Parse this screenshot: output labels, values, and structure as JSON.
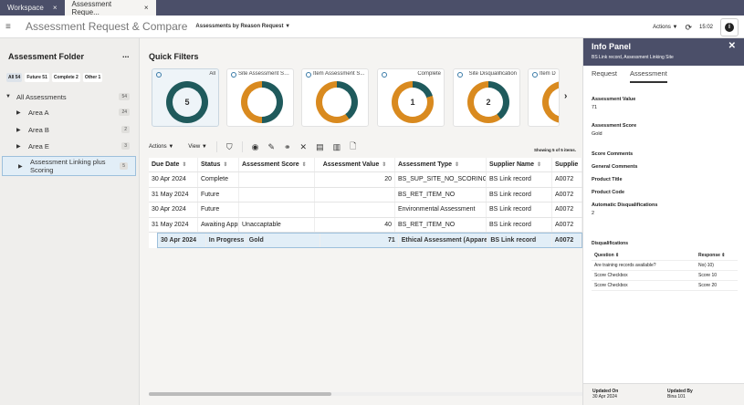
{
  "tabs": [
    {
      "label": "Workspace",
      "close": "×"
    },
    {
      "label": "Assessment Reque...",
      "close": "×"
    }
  ],
  "header": {
    "title": "Assessment Request & Compare",
    "view_select": "Assessments by Reason Request",
    "actions": "Actions",
    "time": "15:02"
  },
  "sidebar": {
    "title": "Assessment Folder",
    "more": "...",
    "chips": [
      {
        "label": "All 54"
      },
      {
        "label": "Future 51"
      },
      {
        "label": "Complete 2"
      },
      {
        "label": "Other 1"
      }
    ],
    "items": [
      {
        "label": "All Assessments",
        "count": "54"
      },
      {
        "label": "Area A",
        "count": "24"
      },
      {
        "label": "Area B",
        "count": "2"
      },
      {
        "label": "Area E",
        "count": "3"
      },
      {
        "label": "Assessment Linking plus Scoring",
        "count": "5"
      }
    ]
  },
  "quick_filters": {
    "title": "Quick Filters",
    "colors": {
      "teal": "#1f5a5c",
      "orange": "#d98a1f"
    },
    "cards": [
      {
        "label": "All",
        "value": "5",
        "teal_fraction": 1
      },
      {
        "label": "Site Assessment Sc...",
        "value": "",
        "teal_fraction": 0.5
      },
      {
        "label": "Item Assessment S...",
        "value": "",
        "teal_fraction": 0.4
      },
      {
        "label": "Complete",
        "value": "1",
        "teal_fraction": 0.2
      },
      {
        "label": "Site Disqualification",
        "value": "2",
        "teal_fraction": 0.4
      },
      {
        "label": "Item D",
        "value": "",
        "teal_fraction": 0
      }
    ]
  },
  "toolbar": {
    "actions": "Actions",
    "view": "View",
    "showing": "Showing 5 of 5 items."
  },
  "table": {
    "columns": [
      "Due Date",
      "Status",
      "Assessment Score",
      "Assessment Value",
      "Assessment Type",
      "Supplier Name",
      "Supplie"
    ],
    "rows": [
      [
        "30 Apr 2024",
        "Complete",
        "",
        "20",
        "BS_SUP_SITE_NO_SCORING",
        "BS Link record",
        "A0072"
      ],
      [
        "31 May 2024",
        "Future",
        "",
        "",
        "BS_RET_ITEM_NO",
        "BS Link record",
        "A0072"
      ],
      [
        "30 Apr 2024",
        "Future",
        "",
        "",
        "Environmental Assessment",
        "BS Link record",
        "A0072"
      ],
      [
        "31 May 2024",
        "Awaiting Approval",
        "Unaccaptable",
        "40",
        "BS_RET_ITEM_NO",
        "BS Link record",
        "A0072"
      ],
      [
        "30 Apr 2024",
        "In Progress",
        "Gold",
        "71",
        "Ethical Assessment (Apparel &",
        "BS Link record",
        "A0072"
      ]
    ]
  },
  "info": {
    "title": "Info Panel",
    "subtitle": "BS Link record, Assessment Linking Site",
    "tabs": [
      "Request",
      "Assessment"
    ],
    "fields": [
      {
        "label": "Assessment Value",
        "value": "71"
      },
      {
        "label": "Assessment Score",
        "value": "Gold"
      },
      {
        "label": "Score Comments",
        "value": ""
      },
      {
        "label": "General Comments",
        "value": ""
      },
      {
        "label": "Product Title",
        "value": ""
      },
      {
        "label": "Product Code",
        "value": ""
      },
      {
        "label": "Automatic Disqualifications",
        "value": "2"
      }
    ],
    "disq": {
      "title": "Disqualifications",
      "columns": [
        "Question",
        "Response"
      ],
      "rows": [
        [
          "Are training records available?",
          "No(-10)"
        ],
        [
          "Score Checkbox",
          "Score 10"
        ],
        [
          "Score Checkbox",
          "Score 20"
        ]
      ]
    },
    "footer": {
      "updated_on_label": "Updated On",
      "updated_on": "30 Apr 2024",
      "updated_by_label": "Updated By",
      "updated_by": "Bina 101"
    }
  }
}
